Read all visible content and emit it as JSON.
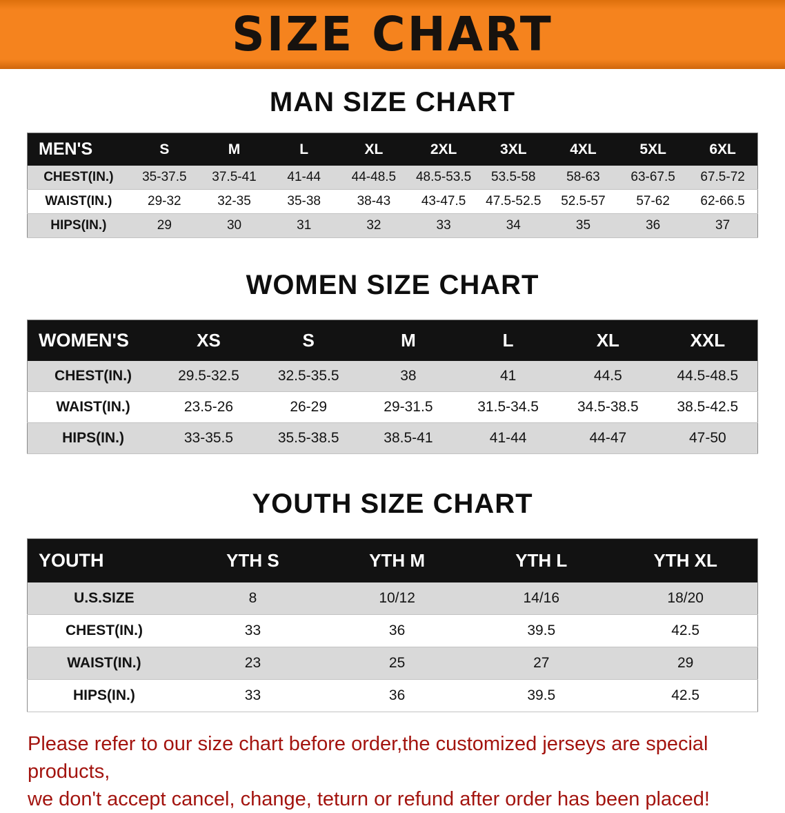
{
  "banner": {
    "title": "SIZE CHART"
  },
  "colors": {
    "banner_bg": "#f5831e",
    "table_header_bg": "#121212",
    "row_alt_bg": "#d9d9d9",
    "disclaimer_text": "#a3140f"
  },
  "sections": [
    {
      "heading": "MAN SIZE CHART",
      "table": {
        "label": "MEN'S",
        "columns": [
          "S",
          "M",
          "L",
          "XL",
          "2XL",
          "3XL",
          "4XL",
          "5XL",
          "6XL"
        ],
        "rows": [
          {
            "label": "CHEST(IN.)",
            "values": [
              "35-37.5",
              "37.5-41",
              "41-44",
              "44-48.5",
              "48.5-53.5",
              "53.5-58",
              "58-63",
              "63-67.5",
              "67.5-72"
            ]
          },
          {
            "label": "WAIST(IN.)",
            "values": [
              "29-32",
              "32-35",
              "35-38",
              "38-43",
              "43-47.5",
              "47.5-52.5",
              "52.5-57",
              "57-62",
              "62-66.5"
            ]
          },
          {
            "label": "HIPS(IN.)",
            "values": [
              "29",
              "30",
              "31",
              "32",
              "33",
              "34",
              "35",
              "36",
              "37"
            ]
          }
        ]
      }
    },
    {
      "heading": "WOMEN SIZE CHART",
      "table": {
        "label": "WOMEN'S",
        "columns": [
          "XS",
          "S",
          "M",
          "L",
          "XL",
          "XXL"
        ],
        "rows": [
          {
            "label": "CHEST(IN.)",
            "values": [
              "29.5-32.5",
              "32.5-35.5",
              "38",
              "41",
              "44.5",
              "44.5-48.5"
            ]
          },
          {
            "label": "WAIST(IN.)",
            "values": [
              "23.5-26",
              "26-29",
              "29-31.5",
              "31.5-34.5",
              "34.5-38.5",
              "38.5-42.5"
            ]
          },
          {
            "label": "HIPS(IN.)",
            "values": [
              "33-35.5",
              "35.5-38.5",
              "38.5-41",
              "41-44",
              "44-47",
              "47-50"
            ]
          }
        ]
      }
    },
    {
      "heading": "YOUTH SIZE CHART",
      "table": {
        "label": "YOUTH",
        "columns": [
          "YTH S",
          "YTH M",
          "YTH L",
          "YTH XL"
        ],
        "rows": [
          {
            "label": "U.S.SIZE",
            "values": [
              "8",
              "10/12",
              "14/16",
              "18/20"
            ]
          },
          {
            "label": "CHEST(IN.)",
            "values": [
              "33",
              "36",
              "39.5",
              "42.5"
            ]
          },
          {
            "label": "WAIST(IN.)",
            "values": [
              "23",
              "25",
              "27",
              "29"
            ]
          },
          {
            "label": "HIPS(IN.)",
            "values": [
              "33",
              "36",
              "39.5",
              "42.5"
            ]
          }
        ]
      }
    }
  ],
  "disclaimer": {
    "line1": "Please refer to our size chart before order,the customized jerseys are special products,",
    "line2": "we don't accept cancel, change, teturn or refund after order has been placed!"
  }
}
